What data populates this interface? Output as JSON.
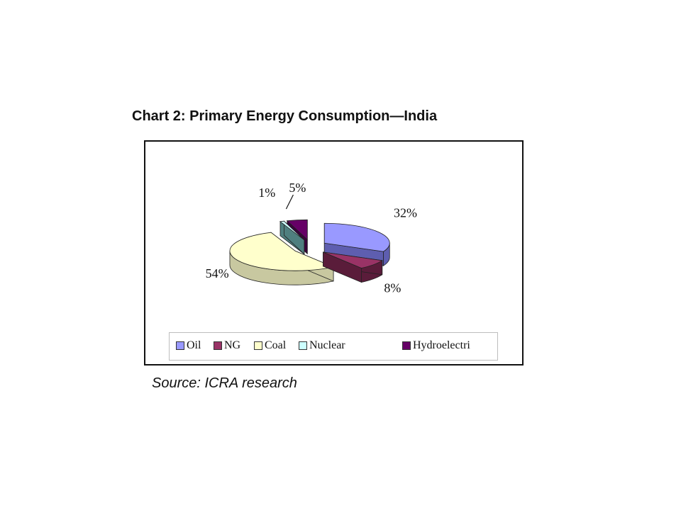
{
  "chart_data": {
    "type": "pie",
    "title": "Chart 2: Primary Energy Consumption—India",
    "source": "Source: ICRA research",
    "legend_position": "bottom",
    "slices": [
      {
        "name": "Oil",
        "value": 32,
        "label": "32%",
        "color": "#9999ff",
        "side": "#5e5eb0"
      },
      {
        "name": "NG",
        "value": 8,
        "label": "8%",
        "color": "#993366",
        "side": "#5a1c3a"
      },
      {
        "name": "Coal",
        "value": 54,
        "label": "54%",
        "color": "#ffffcc",
        "side": "#c8c8a0"
      },
      {
        "name": "Nuclear",
        "value": 1,
        "label": "1%",
        "color": "#ccffff",
        "side": "#4f7f7f"
      },
      {
        "name": "Hydroelectri",
        "value": 5,
        "label": "5%",
        "color": "#660066",
        "side": "#3a003a"
      }
    ]
  }
}
